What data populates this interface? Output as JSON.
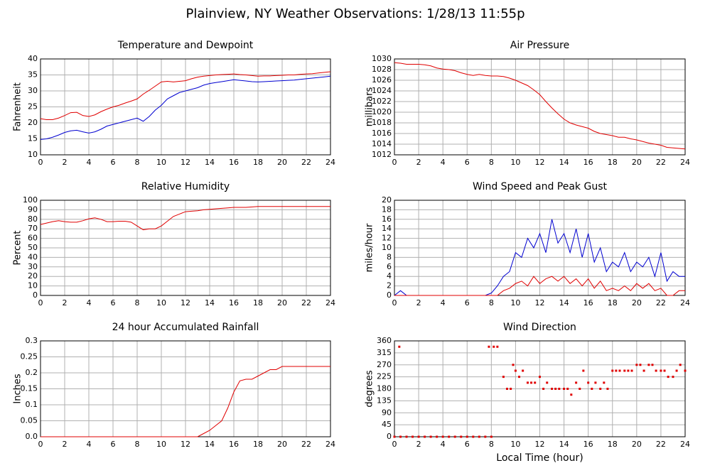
{
  "title": "Plainview, NY Weather Observations: 1/28/13 11:55p",
  "chart_data": [
    {
      "type": "line",
      "title": "Temperature and Dewpoint",
      "ylabel": "Fahrenheit",
      "x": [
        0,
        0.5,
        1,
        1.5,
        2,
        2.5,
        3,
        3.5,
        4,
        4.5,
        5,
        5.5,
        6,
        6.5,
        7,
        7.5,
        8,
        8.5,
        9,
        9.5,
        10,
        10.5,
        11,
        11.5,
        12,
        12.5,
        13,
        13.5,
        14,
        14.5,
        15,
        15.5,
        16,
        16.5,
        17,
        17.5,
        18,
        18.5,
        19,
        19.5,
        20,
        20.5,
        21,
        21.5,
        22,
        22.5,
        23,
        23.5,
        24
      ],
      "series": [
        {
          "color": "#e00000",
          "values": [
            21.3,
            21,
            21,
            21.5,
            22.3,
            23.2,
            23.3,
            22.3,
            22,
            22.5,
            23.5,
            24.3,
            25,
            25.5,
            26.2,
            26.8,
            27.5,
            29,
            30.2,
            31.5,
            32.8,
            33,
            32.8,
            33,
            33.2,
            33.8,
            34.3,
            34.6,
            34.8,
            35,
            35.1,
            35.2,
            35.3,
            35.1,
            35,
            34.8,
            34.6,
            34.7,
            34.7,
            34.8,
            34.9,
            35,
            35,
            35.2,
            35.3,
            35.4,
            35.6,
            35.8,
            36
          ]
        },
        {
          "color": "#0000d0",
          "values": [
            14.8,
            15,
            15.5,
            16.2,
            17,
            17.5,
            17.7,
            17.2,
            16.8,
            17.2,
            18,
            19,
            19.5,
            20,
            20.5,
            21,
            21.5,
            20.5,
            22,
            24,
            25.5,
            27.5,
            28.5,
            29.5,
            30,
            30.5,
            31,
            31.8,
            32.3,
            32.6,
            32.9,
            33.2,
            33.5,
            33.3,
            33.1,
            32.9,
            32.8,
            32.9,
            33,
            33.1,
            33.2,
            33.3,
            33.4,
            33.6,
            33.8,
            34,
            34.2,
            34.4,
            34.6
          ]
        }
      ],
      "xlim": [
        0,
        24
      ],
      "xticks": [
        0,
        2,
        4,
        6,
        8,
        10,
        12,
        14,
        16,
        18,
        20,
        22,
        24
      ],
      "ylim": [
        10,
        40
      ],
      "yticks": [
        10,
        15,
        20,
        25,
        30,
        35,
        40
      ],
      "grid": true
    },
    {
      "type": "line",
      "title": "Air Pressure",
      "ylabel": "millibars",
      "x": [
        0,
        0.5,
        1,
        1.5,
        2,
        2.5,
        3,
        3.5,
        4,
        4.5,
        5,
        5.5,
        6,
        6.5,
        7,
        7.5,
        8,
        8.5,
        9,
        9.5,
        10,
        10.5,
        11,
        11.5,
        12,
        12.5,
        13,
        13.5,
        14,
        14.5,
        15,
        15.5,
        16,
        16.5,
        17,
        17.5,
        18,
        18.5,
        19,
        19.5,
        20,
        20.5,
        21,
        21.5,
        22,
        22.5,
        23,
        23.5,
        24
      ],
      "series": [
        {
          "color": "#e00000",
          "values": [
            1029.3,
            1029.2,
            1029,
            1029,
            1029,
            1028.9,
            1028.7,
            1028.3,
            1028.1,
            1028,
            1027.8,
            1027.4,
            1027.1,
            1026.9,
            1027.1,
            1026.9,
            1026.8,
            1026.8,
            1026.7,
            1026.4,
            1026,
            1025.5,
            1025,
            1024.2,
            1023.3,
            1022,
            1020.8,
            1019.7,
            1018.7,
            1018,
            1017.6,
            1017.3,
            1017,
            1016.4,
            1016,
            1015.8,
            1015.6,
            1015.3,
            1015.3,
            1015,
            1014.8,
            1014.5,
            1014.2,
            1014,
            1013.8,
            1013.4,
            1013.3,
            1013.2,
            1013.1
          ]
        }
      ],
      "xlim": [
        0,
        24
      ],
      "xticks": [
        0,
        2,
        4,
        6,
        8,
        10,
        12,
        14,
        16,
        18,
        20,
        22,
        24
      ],
      "ylim": [
        1012,
        1030
      ],
      "yticks": [
        1012,
        1014,
        1016,
        1018,
        1020,
        1022,
        1024,
        1026,
        1028,
        1030
      ],
      "grid": true
    },
    {
      "type": "line",
      "title": "Relative Humidity",
      "ylabel": "Percent",
      "x": [
        0,
        0.5,
        1,
        1.5,
        2,
        2.5,
        3,
        3.5,
        4,
        4.5,
        5,
        5.5,
        6,
        6.5,
        7,
        7.5,
        8,
        8.5,
        9,
        9.5,
        10,
        10.5,
        11,
        11.5,
        12,
        12.5,
        13,
        13.5,
        14,
        14.5,
        15,
        15.5,
        16,
        16.5,
        17,
        17.5,
        18,
        18.5,
        19,
        19.5,
        20,
        20.5,
        21,
        21.5,
        22,
        22.5,
        23,
        23.5,
        24
      ],
      "series": [
        {
          "color": "#e00000",
          "values": [
            74.5,
            76,
            77.5,
            78.5,
            77.5,
            77,
            77,
            78.5,
            80.5,
            81.5,
            80,
            77.5,
            77.5,
            78,
            78,
            77,
            73,
            69,
            70,
            70,
            73,
            78,
            83,
            85.5,
            88,
            88.5,
            89,
            90,
            90.5,
            91,
            91.5,
            92,
            92.5,
            92.5,
            92.5,
            93,
            93.5,
            93.5,
            93.5,
            93.5,
            93.5,
            93.5,
            93.5,
            93.5,
            93.5,
            93.5,
            93.5,
            93.5,
            93.5
          ]
        }
      ],
      "xlim": [
        0,
        24
      ],
      "xticks": [
        0,
        2,
        4,
        6,
        8,
        10,
        12,
        14,
        16,
        18,
        20,
        22,
        24
      ],
      "ylim": [
        0,
        100
      ],
      "yticks": [
        0,
        10,
        20,
        30,
        40,
        50,
        60,
        70,
        80,
        90,
        100
      ],
      "grid": true
    },
    {
      "type": "line",
      "title": "Wind Speed and Peak Gust",
      "ylabel": "miles/hour",
      "x": [
        0,
        0.5,
        1,
        1.5,
        2,
        2.5,
        3,
        3.5,
        4,
        4.5,
        5,
        5.5,
        6,
        6.5,
        7,
        7.5,
        8,
        8.5,
        9,
        9.5,
        10,
        10.5,
        11,
        11.5,
        12,
        12.5,
        13,
        13.5,
        14,
        14.5,
        15,
        15.5,
        16,
        16.5,
        17,
        17.5,
        18,
        18.5,
        19,
        19.5,
        20,
        20.5,
        21,
        21.5,
        22,
        22.5,
        23,
        23.5,
        24
      ],
      "series": [
        {
          "color": "#0000d0",
          "values": [
            0,
            1,
            0,
            0,
            0,
            0,
            0,
            0,
            0,
            0,
            0,
            0,
            0,
            0,
            0,
            0,
            0.5,
            2,
            4,
            5,
            9,
            8,
            12,
            10,
            13,
            9,
            16,
            11,
            13,
            9,
            14,
            8,
            13,
            7,
            10,
            5,
            7,
            6,
            9,
            5,
            7,
            6,
            8,
            4,
            9,
            3,
            5,
            4,
            4
          ]
        },
        {
          "color": "#e00000",
          "values": [
            0,
            0,
            0,
            0,
            0,
            0,
            0,
            0,
            0,
            0,
            0,
            0,
            0,
            0,
            0,
            0,
            0,
            0,
            1,
            1.5,
            2.5,
            3,
            2,
            4,
            2.5,
            3.5,
            4,
            3,
            4,
            2.5,
            3.5,
            2,
            3.5,
            1.5,
            3,
            1,
            1.5,
            1,
            2,
            1,
            2.5,
            1.5,
            2.5,
            1,
            1.5,
            0,
            0,
            1,
            1
          ]
        }
      ],
      "xlim": [
        0,
        24
      ],
      "xticks": [
        0,
        2,
        4,
        6,
        8,
        10,
        12,
        14,
        16,
        18,
        20,
        22,
        24
      ],
      "ylim": [
        0,
        20
      ],
      "yticks": [
        0,
        2,
        4,
        6,
        8,
        10,
        12,
        14,
        16,
        18,
        20
      ],
      "grid": true
    },
    {
      "type": "line",
      "title": "24 hour Accumulated Rainfall",
      "ylabel": "Inches",
      "x": [
        0,
        0.5,
        1,
        1.5,
        2,
        2.5,
        3,
        3.5,
        4,
        4.5,
        5,
        5.5,
        6,
        6.5,
        7,
        7.5,
        8,
        8.5,
        9,
        9.5,
        10,
        10.5,
        11,
        11.5,
        12,
        12.5,
        13,
        13.5,
        14,
        14.5,
        15,
        15.5,
        16,
        16.5,
        17,
        17.5,
        18,
        18.5,
        19,
        19.5,
        20,
        20.5,
        21,
        21.5,
        22,
        22.5,
        23,
        23.5,
        24
      ],
      "series": [
        {
          "color": "#e00000",
          "values": [
            0,
            0,
            0,
            0,
            0,
            0,
            0,
            0,
            0,
            0,
            0,
            0,
            0,
            0,
            0,
            0,
            0,
            0,
            0,
            0,
            0,
            0,
            0,
            0,
            0,
            0,
            0,
            0.01,
            0.02,
            0.035,
            0.05,
            0.09,
            0.14,
            0.175,
            0.18,
            0.18,
            0.19,
            0.2,
            0.21,
            0.21,
            0.22,
            0.22,
            0.22,
            0.22,
            0.22,
            0.22,
            0.22,
            0.22,
            0.22
          ]
        }
      ],
      "xlim": [
        0,
        24
      ],
      "xticks": [
        0,
        2,
        4,
        6,
        8,
        10,
        12,
        14,
        16,
        18,
        20,
        22,
        24
      ],
      "ylim": [
        0,
        0.3
      ],
      "yticks": [
        {
          "value": 0,
          "label": "0.0"
        },
        0.05,
        0.1,
        0.15,
        0.2,
        0.25,
        0.3
      ],
      "grid": true
    },
    {
      "type": "scatter",
      "title": "Wind Direction",
      "ylabel": "degrees",
      "xlabel": "Local Time (hour)",
      "x": [
        0,
        0.4,
        0.5,
        1,
        1.5,
        2,
        2.5,
        3,
        3.5,
        4,
        4.5,
        5,
        5.5,
        6,
        6.5,
        7,
        7.5,
        7.8,
        8,
        8.2,
        8.5,
        9,
        9.3,
        9.6,
        9.8,
        10,
        10.3,
        10.6,
        11,
        11.3,
        11.6,
        12,
        12.3,
        12.6,
        13,
        13.3,
        13.6,
        14,
        14.3,
        14.6,
        15,
        15.3,
        15.6,
        16,
        16.3,
        16.6,
        17,
        17.3,
        17.6,
        18,
        18.3,
        18.6,
        19,
        19.3,
        19.6,
        20,
        20.3,
        20.6,
        21,
        21.3,
        21.6,
        22,
        22.3,
        22.6,
        23,
        23.3,
        23.6,
        24
      ],
      "series": [
        {
          "color": "#e00000",
          "values": [
            0,
            338,
            0,
            0,
            0,
            0,
            0,
            0,
            0,
            0,
            0,
            0,
            0,
            0,
            0,
            0,
            0,
            338,
            0,
            338,
            338,
            225,
            180,
            180,
            270,
            248,
            225,
            248,
            203,
            203,
            203,
            225,
            180,
            203,
            180,
            180,
            180,
            180,
            180,
            158,
            203,
            180,
            248,
            203,
            180,
            203,
            180,
            203,
            180,
            248,
            248,
            248,
            248,
            248,
            248,
            270,
            270,
            248,
            270,
            270,
            248,
            248,
            248,
            225,
            225,
            248,
            270,
            248
          ]
        }
      ],
      "xlim": [
        0,
        24
      ],
      "xticks": [
        0,
        2,
        4,
        6,
        8,
        10,
        12,
        14,
        16,
        18,
        20,
        22,
        24
      ],
      "ylim": [
        0,
        360
      ],
      "yticks": [
        0,
        45,
        90,
        135,
        180,
        225,
        270,
        315,
        360
      ],
      "grid": true
    }
  ]
}
